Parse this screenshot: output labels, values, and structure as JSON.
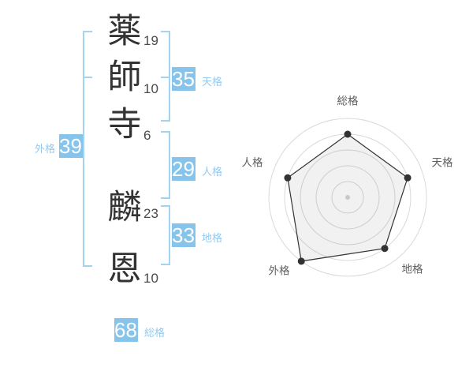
{
  "name": {
    "surname": [
      {
        "char": "薬",
        "strokes": "19"
      },
      {
        "char": "師",
        "strokes": "10"
      },
      {
        "char": "寺",
        "strokes": "6"
      }
    ],
    "given": [
      {
        "char": "麟",
        "strokes": "23"
      },
      {
        "char": "恩",
        "strokes": "10"
      }
    ]
  },
  "kaku": {
    "tenkaku": {
      "label": "天格",
      "value": "35"
    },
    "jinkaku": {
      "label": "人格",
      "value": "29"
    },
    "chikaku": {
      "label": "地格",
      "value": "33"
    },
    "gaikaku": {
      "label": "外格",
      "value": "39"
    },
    "soukaku": {
      "label": "総格",
      "value": "68"
    }
  },
  "colors": {
    "box_blue": "#87c4ec",
    "bracket_blue": "#a2d4f2",
    "label_blue": "#94cbef",
    "text_dark": "#333333",
    "stroke_number_gray": "#4a4a4a",
    "radar_label_gray": "#606060",
    "radar_ring_gray": "#d9d9d9",
    "radar_line_dark": "#333333"
  },
  "chart_data": {
    "type": "radar",
    "title": "",
    "categories": [
      "総格",
      "天格",
      "地格",
      "外格",
      "人格"
    ],
    "values": [
      4,
      4,
      4,
      5,
      4
    ],
    "max": 5,
    "ring_count": 5,
    "grid": "circular",
    "legend": false,
    "center_dot": true,
    "vertex_dots": true
  }
}
